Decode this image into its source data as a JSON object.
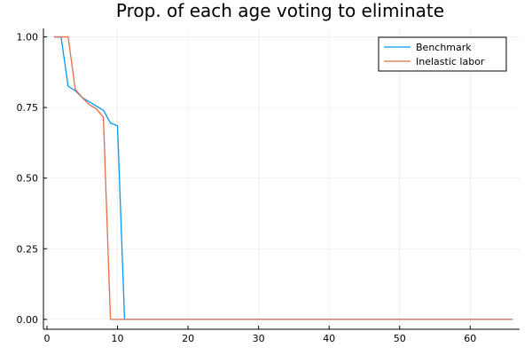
{
  "chart_data": {
    "type": "line",
    "title": "Prop. of each age voting to eliminate",
    "xlabel": "",
    "ylabel": "",
    "xlim": [
      0,
      66
    ],
    "ylim": [
      0,
      1
    ],
    "x_ticks": [
      0,
      10,
      20,
      30,
      40,
      50,
      60
    ],
    "y_ticks": [
      0.0,
      0.25,
      0.5,
      0.75,
      1.0
    ],
    "x_tick_labels": [
      "0",
      "10",
      "20",
      "30",
      "40",
      "50",
      "60"
    ],
    "y_tick_labels": [
      "0.00",
      "0.25",
      "0.50",
      "0.75",
      "1.00"
    ],
    "grid": true,
    "legend_position": "top-right",
    "series": [
      {
        "name": "Benchmark",
        "color": "#009AFA",
        "points": [
          [
            1,
            1.0
          ],
          [
            2,
            1.0
          ],
          [
            3,
            0.825
          ],
          [
            4,
            0.81
          ],
          [
            5,
            0.785
          ],
          [
            6,
            0.77
          ],
          [
            7,
            0.755
          ],
          [
            8,
            0.74
          ],
          [
            9,
            0.695
          ],
          [
            10,
            0.685
          ],
          [
            11,
            0.0
          ],
          [
            66,
            0.0
          ]
        ]
      },
      {
        "name": "Inelastic labor",
        "color": "#E26F46",
        "points": [
          [
            1,
            1.0
          ],
          [
            2,
            1.0
          ],
          [
            3,
            1.0
          ],
          [
            4,
            0.815
          ],
          [
            5,
            0.785
          ],
          [
            6,
            0.76
          ],
          [
            7,
            0.745
          ],
          [
            8,
            0.715
          ],
          [
            9,
            0.0
          ],
          [
            66,
            0.0
          ]
        ]
      }
    ]
  }
}
